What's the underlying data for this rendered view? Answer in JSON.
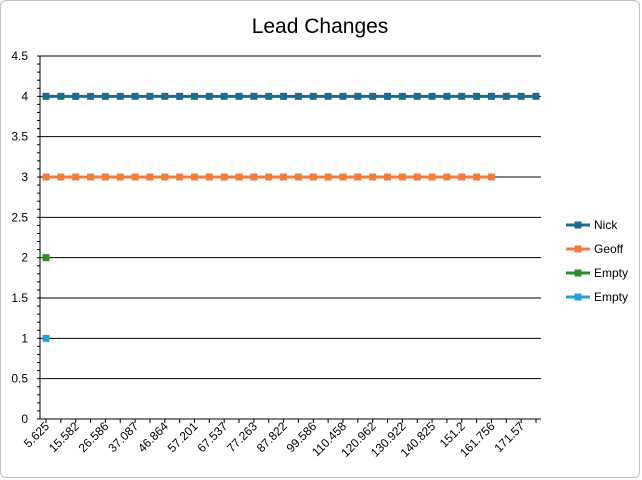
{
  "chart_data": {
    "type": "line",
    "title": "Lead Changes",
    "xlabel": "",
    "ylabel": "",
    "ylim": [
      0,
      4.5
    ],
    "ytick_step": 0.5,
    "yticks": [
      "0",
      "0.5",
      "1",
      "1.5",
      "2",
      "2.5",
      "3",
      "3.5",
      "4",
      "4.5"
    ],
    "category_count": 34,
    "x_tick_labels": [
      "5.625",
      "15.582",
      "26.586",
      "37.087",
      "46.864",
      "57.201",
      "67.537",
      "77.263",
      "87.822",
      "99.586",
      "110.458",
      "120.962",
      "130.922",
      "140.825",
      "151.2",
      "161.756",
      "171.57"
    ],
    "x_tick_label_every": 2,
    "grid": true,
    "legend_position": "right",
    "series": [
      {
        "name": "Nick",
        "color": "#1f6b8f",
        "values": [
          4,
          4,
          4,
          4,
          4,
          4,
          4,
          4,
          4,
          4,
          4,
          4,
          4,
          4,
          4,
          4,
          4,
          4,
          4,
          4,
          4,
          4,
          4,
          4,
          4,
          4,
          4,
          4,
          4,
          4,
          4,
          4,
          4,
          4
        ]
      },
      {
        "name": "Geoff",
        "color": "#f07d3c",
        "values": [
          3,
          3,
          3,
          3,
          3,
          3,
          3,
          3,
          3,
          3,
          3,
          3,
          3,
          3,
          3,
          3,
          3,
          3,
          3,
          3,
          3,
          3,
          3,
          3,
          3,
          3,
          3,
          3,
          3,
          3,
          3
        ]
      },
      {
        "name": "Empty",
        "color": "#2e8b2e",
        "values": [
          2
        ]
      },
      {
        "name": "Empty",
        "color": "#21a3d8",
        "values": [
          1
        ]
      }
    ]
  }
}
